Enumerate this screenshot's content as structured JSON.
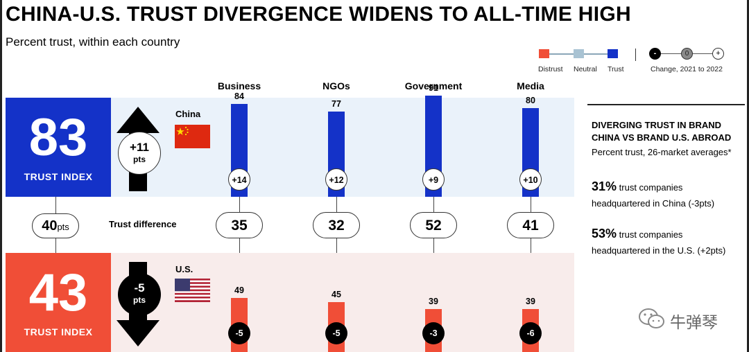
{
  "header": {
    "title": "CHINA-U.S. TRUST DIVERGENCE WIDENS TO ALL-TIME HIGH",
    "subtitle": "Percent trust, within each country"
  },
  "legend": {
    "distrust": "Distrust",
    "neutral": "Neutral",
    "trust": "Trust",
    "change_minus": "-",
    "change_zero": "0",
    "change_plus": "+",
    "change_label": "Change, 2021 to 2022",
    "colors": {
      "distrust": "#f04e37",
      "neutral": "#a9c3d3",
      "trust": "#1432c8"
    }
  },
  "china": {
    "index": "83",
    "index_label": "TRUST INDEX",
    "change": "+11",
    "change_unit": "pts",
    "country": "China",
    "color": "#1432c8"
  },
  "us": {
    "index": "43",
    "index_label": "TRUST INDEX",
    "change": "-5",
    "change_unit": "pts",
    "country": "U.S.",
    "color": "#f04e37"
  },
  "difference": {
    "total_value": "40",
    "total_unit": "pts",
    "label": "Trust difference"
  },
  "chart_data": {
    "type": "bar",
    "categories": [
      "Business",
      "NGOs",
      "Government",
      "Media"
    ],
    "series": [
      {
        "country": "China",
        "values": [
          84,
          77,
          91,
          80
        ],
        "changes": [
          "+14",
          "+12",
          "+9",
          "+10"
        ]
      },
      {
        "country": "U.S.",
        "values": [
          49,
          45,
          39,
          39
        ],
        "changes": [
          "-5",
          "-5",
          "-3",
          "-6"
        ]
      }
    ],
    "differences": [
      35,
      32,
      52,
      41
    ],
    "ylim": [
      0,
      100
    ]
  },
  "sidebar": {
    "title_line1": "DIVERGING TRUST IN BRAND",
    "title_line2": "CHINA VS BRAND U.S. ABROAD",
    "subtitle": "Percent trust, 26-market averages*",
    "stat1_value": "31%",
    "stat1_text1": "trust companies",
    "stat1_text2": "headquartered in China (-3pts)",
    "stat2_value": "53%",
    "stat2_text1": "trust companies",
    "stat2_text2": "headquartered in the U.S. (+2pts)"
  },
  "watermark": {
    "text": "牛弹琴"
  }
}
